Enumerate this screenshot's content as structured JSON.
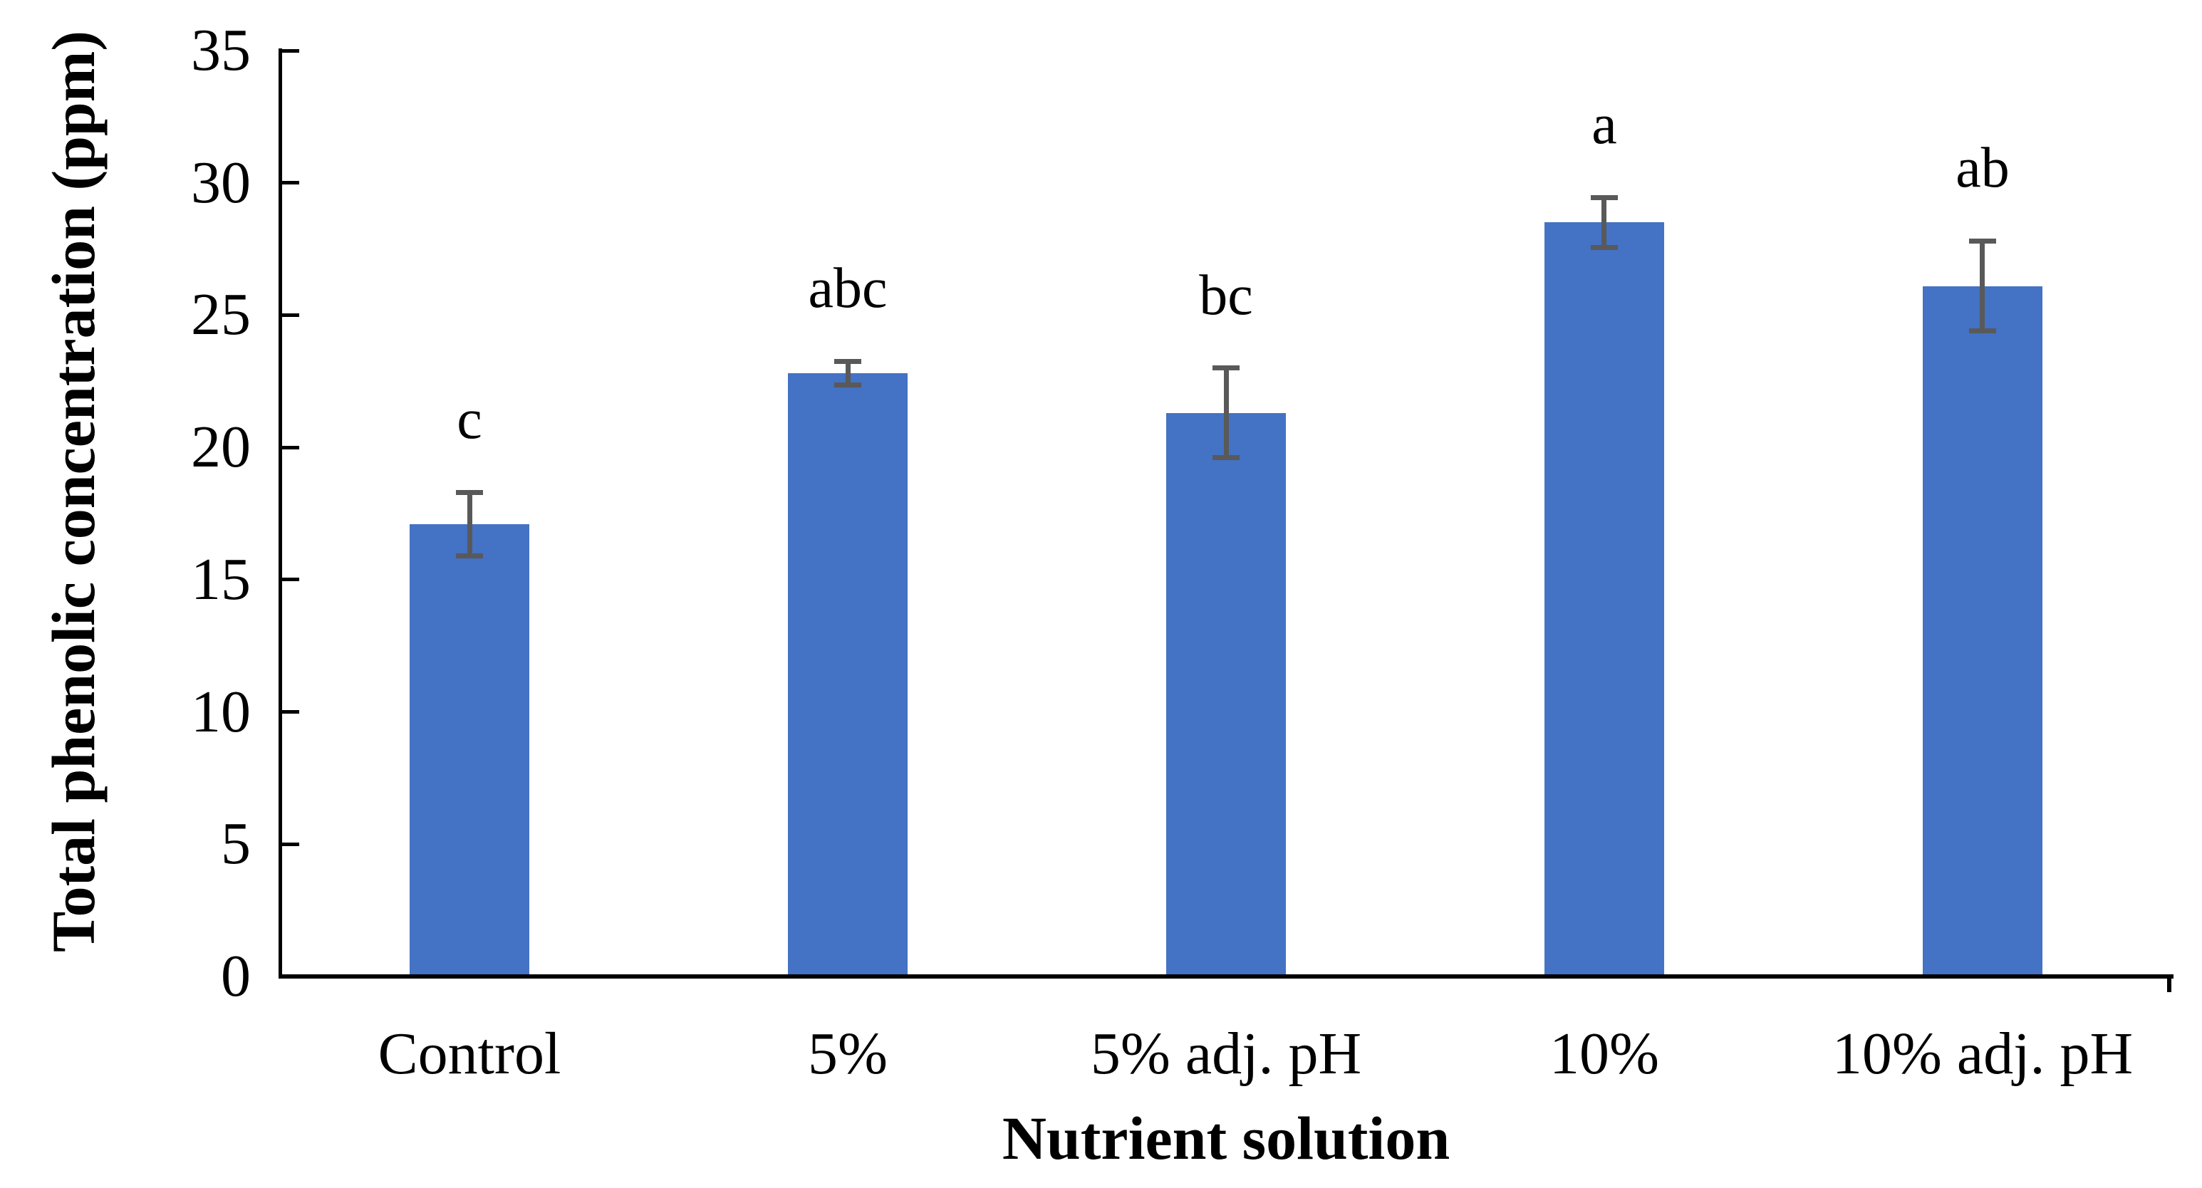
{
  "figure": {
    "title": ""
  },
  "chart_data": {
    "type": "bar",
    "title": "",
    "xlabel": "Nutrient solution",
    "ylabel": "Total phenolic concentration (ppm)",
    "categories": [
      "Control",
      "5%",
      "5% adj. pH",
      "10%",
      "10% adj. pH"
    ],
    "values": [
      17.1,
      22.8,
      21.3,
      28.5,
      26.1
    ],
    "error_bars": [
      1.2,
      0.45,
      1.7,
      0.95,
      1.7
    ],
    "sig_letters": [
      "c",
      "abc",
      "bc",
      "a",
      "ab"
    ],
    "ylim": [
      0,
      35
    ],
    "yticks": [
      0,
      5,
      10,
      15,
      20,
      25,
      30,
      35
    ],
    "ytick_step": 5,
    "grid": "off",
    "legend": "none",
    "bar_color": "#4472C4",
    "error_bar_color": "#595959",
    "axis_color": "#000000",
    "text_color": "#000000"
  }
}
